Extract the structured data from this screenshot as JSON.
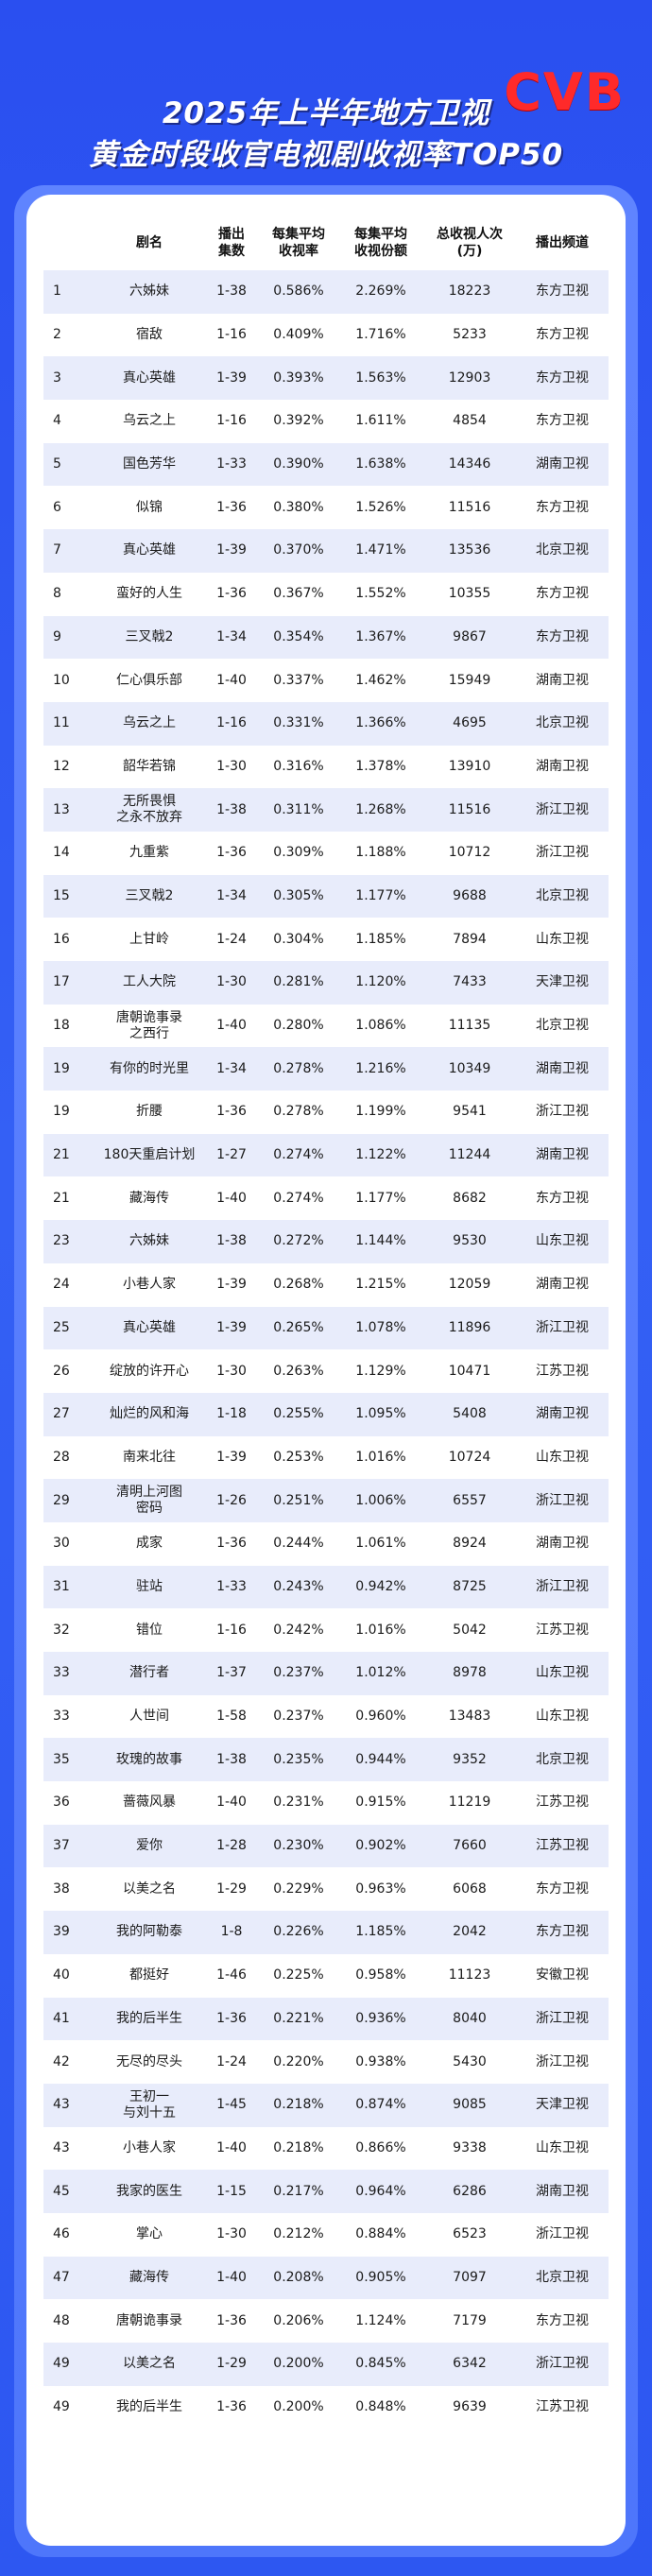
{
  "logo": "CVB",
  "title_line1": "2025年上半年地方卫视",
  "title_line2": "黄金时段收官电视剧收视率TOP50",
  "headers": {
    "rank": "",
    "name": "剧名",
    "episodes": "播出\n集数",
    "rating": "每集平均\n收视率",
    "share": "每集平均\n收视份额",
    "viewers": "总收视人次\n(万)",
    "channel": "播出频道"
  },
  "rows": [
    {
      "rank": "1",
      "name": "六姊妹",
      "episodes": "1-38",
      "rating": "0.586%",
      "share": "2.269%",
      "viewers": "18223",
      "channel": "东方卫视"
    },
    {
      "rank": "2",
      "name": "宿敌",
      "episodes": "1-16",
      "rating": "0.409%",
      "share": "1.716%",
      "viewers": "5233",
      "channel": "东方卫视"
    },
    {
      "rank": "3",
      "name": "真心英雄",
      "episodes": "1-39",
      "rating": "0.393%",
      "share": "1.563%",
      "viewers": "12903",
      "channel": "东方卫视"
    },
    {
      "rank": "4",
      "name": "乌云之上",
      "episodes": "1-16",
      "rating": "0.392%",
      "share": "1.611%",
      "viewers": "4854",
      "channel": "东方卫视"
    },
    {
      "rank": "5",
      "name": "国色芳华",
      "episodes": "1-33",
      "rating": "0.390%",
      "share": "1.638%",
      "viewers": "14346",
      "channel": "湖南卫视"
    },
    {
      "rank": "6",
      "name": "似锦",
      "episodes": "1-36",
      "rating": "0.380%",
      "share": "1.526%",
      "viewers": "11516",
      "channel": "东方卫视"
    },
    {
      "rank": "7",
      "name": "真心英雄",
      "episodes": "1-39",
      "rating": "0.370%",
      "share": "1.471%",
      "viewers": "13536",
      "channel": "北京卫视"
    },
    {
      "rank": "8",
      "name": "蛮好的人生",
      "episodes": "1-36",
      "rating": "0.367%",
      "share": "1.552%",
      "viewers": "10355",
      "channel": "东方卫视"
    },
    {
      "rank": "9",
      "name": "三叉戟2",
      "episodes": "1-34",
      "rating": "0.354%",
      "share": "1.367%",
      "viewers": "9867",
      "channel": "东方卫视"
    },
    {
      "rank": "10",
      "name": "仁心俱乐部",
      "episodes": "1-40",
      "rating": "0.337%",
      "share": "1.462%",
      "viewers": "15949",
      "channel": "湖南卫视"
    },
    {
      "rank": "11",
      "name": "乌云之上",
      "episodes": "1-16",
      "rating": "0.331%",
      "share": "1.366%",
      "viewers": "4695",
      "channel": "北京卫视"
    },
    {
      "rank": "12",
      "name": "韶华若锦",
      "episodes": "1-30",
      "rating": "0.316%",
      "share": "1.378%",
      "viewers": "13910",
      "channel": "湖南卫视"
    },
    {
      "rank": "13",
      "name": "无所畏惧\n之永不放弃",
      "episodes": "1-38",
      "rating": "0.311%",
      "share": "1.268%",
      "viewers": "11516",
      "channel": "浙江卫视"
    },
    {
      "rank": "14",
      "name": "九重紫",
      "episodes": "1-36",
      "rating": "0.309%",
      "share": "1.188%",
      "viewers": "10712",
      "channel": "浙江卫视"
    },
    {
      "rank": "15",
      "name": "三叉戟2",
      "episodes": "1-34",
      "rating": "0.305%",
      "share": "1.177%",
      "viewers": "9688",
      "channel": "北京卫视"
    },
    {
      "rank": "16",
      "name": "上甘岭",
      "episodes": "1-24",
      "rating": "0.304%",
      "share": "1.185%",
      "viewers": "7894",
      "channel": "山东卫视"
    },
    {
      "rank": "17",
      "name": "工人大院",
      "episodes": "1-30",
      "rating": "0.281%",
      "share": "1.120%",
      "viewers": "7433",
      "channel": "天津卫视"
    },
    {
      "rank": "18",
      "name": "唐朝诡事录\n之西行",
      "episodes": "1-40",
      "rating": "0.280%",
      "share": "1.086%",
      "viewers": "11135",
      "channel": "北京卫视"
    },
    {
      "rank": "19",
      "name": "有你的时光里",
      "episodes": "1-34",
      "rating": "0.278%",
      "share": "1.216%",
      "viewers": "10349",
      "channel": "湖南卫视"
    },
    {
      "rank": "19",
      "name": "折腰",
      "episodes": "1-36",
      "rating": "0.278%",
      "share": "1.199%",
      "viewers": "9541",
      "channel": "浙江卫视"
    },
    {
      "rank": "21",
      "name": "180天重启计划",
      "episodes": "1-27",
      "rating": "0.274%",
      "share": "1.122%",
      "viewers": "11244",
      "channel": "湖南卫视"
    },
    {
      "rank": "21",
      "name": "藏海传",
      "episodes": "1-40",
      "rating": "0.274%",
      "share": "1.177%",
      "viewers": "8682",
      "channel": "东方卫视"
    },
    {
      "rank": "23",
      "name": "六姊妹",
      "episodes": "1-38",
      "rating": "0.272%",
      "share": "1.144%",
      "viewers": "9530",
      "channel": "山东卫视"
    },
    {
      "rank": "24",
      "name": "小巷人家",
      "episodes": "1-39",
      "rating": "0.268%",
      "share": "1.215%",
      "viewers": "12059",
      "channel": "湖南卫视"
    },
    {
      "rank": "25",
      "name": "真心英雄",
      "episodes": "1-39",
      "rating": "0.265%",
      "share": "1.078%",
      "viewers": "11896",
      "channel": "浙江卫视"
    },
    {
      "rank": "26",
      "name": "绽放的许开心",
      "episodes": "1-30",
      "rating": "0.263%",
      "share": "1.129%",
      "viewers": "10471",
      "channel": "江苏卫视"
    },
    {
      "rank": "27",
      "name": "灿烂的风和海",
      "episodes": "1-18",
      "rating": "0.255%",
      "share": "1.095%",
      "viewers": "5408",
      "channel": "湖南卫视"
    },
    {
      "rank": "28",
      "name": "南来北往",
      "episodes": "1-39",
      "rating": "0.253%",
      "share": "1.016%",
      "viewers": "10724",
      "channel": "山东卫视"
    },
    {
      "rank": "29",
      "name": "清明上河图\n密码",
      "episodes": "1-26",
      "rating": "0.251%",
      "share": "1.006%",
      "viewers": "6557",
      "channel": "浙江卫视"
    },
    {
      "rank": "30",
      "name": "成家",
      "episodes": "1-36",
      "rating": "0.244%",
      "share": "1.061%",
      "viewers": "8924",
      "channel": "湖南卫视"
    },
    {
      "rank": "31",
      "name": "驻站",
      "episodes": "1-33",
      "rating": "0.243%",
      "share": "0.942%",
      "viewers": "8725",
      "channel": "浙江卫视"
    },
    {
      "rank": "32",
      "name": "错位",
      "episodes": "1-16",
      "rating": "0.242%",
      "share": "1.016%",
      "viewers": "5042",
      "channel": "江苏卫视"
    },
    {
      "rank": "33",
      "name": "潜行者",
      "episodes": "1-37",
      "rating": "0.237%",
      "share": "1.012%",
      "viewers": "8978",
      "channel": "山东卫视"
    },
    {
      "rank": "33",
      "name": "人世间",
      "episodes": "1-58",
      "rating": "0.237%",
      "share": "0.960%",
      "viewers": "13483",
      "channel": "山东卫视"
    },
    {
      "rank": "35",
      "name": "玫瑰的故事",
      "episodes": "1-38",
      "rating": "0.235%",
      "share": "0.944%",
      "viewers": "9352",
      "channel": "北京卫视"
    },
    {
      "rank": "36",
      "name": "蔷薇风暴",
      "episodes": "1-40",
      "rating": "0.231%",
      "share": "0.915%",
      "viewers": "11219",
      "channel": "江苏卫视"
    },
    {
      "rank": "37",
      "name": "爱你",
      "episodes": "1-28",
      "rating": "0.230%",
      "share": "0.902%",
      "viewers": "7660",
      "channel": "江苏卫视"
    },
    {
      "rank": "38",
      "name": "以美之名",
      "episodes": "1-29",
      "rating": "0.229%",
      "share": "0.963%",
      "viewers": "6068",
      "channel": "东方卫视"
    },
    {
      "rank": "39",
      "name": "我的阿勒泰",
      "episodes": "1-8",
      "rating": "0.226%",
      "share": "1.185%",
      "viewers": "2042",
      "channel": "东方卫视"
    },
    {
      "rank": "40",
      "name": "都挺好",
      "episodes": "1-46",
      "rating": "0.225%",
      "share": "0.958%",
      "viewers": "11123",
      "channel": "安徽卫视"
    },
    {
      "rank": "41",
      "name": "我的后半生",
      "episodes": "1-36",
      "rating": "0.221%",
      "share": "0.936%",
      "viewers": "8040",
      "channel": "浙江卫视"
    },
    {
      "rank": "42",
      "name": "无尽的尽头",
      "episodes": "1-24",
      "rating": "0.220%",
      "share": "0.938%",
      "viewers": "5430",
      "channel": "浙江卫视"
    },
    {
      "rank": "43",
      "name": "王初一\n与刘十五",
      "episodes": "1-45",
      "rating": "0.218%",
      "share": "0.874%",
      "viewers": "9085",
      "channel": "天津卫视"
    },
    {
      "rank": "43",
      "name": "小巷人家",
      "episodes": "1-40",
      "rating": "0.218%",
      "share": "0.866%",
      "viewers": "9338",
      "channel": "山东卫视"
    },
    {
      "rank": "45",
      "name": "我家的医生",
      "episodes": "1-15",
      "rating": "0.217%",
      "share": "0.964%",
      "viewers": "6286",
      "channel": "湖南卫视"
    },
    {
      "rank": "46",
      "name": "掌心",
      "episodes": "1-30",
      "rating": "0.212%",
      "share": "0.884%",
      "viewers": "6523",
      "channel": "浙江卫视"
    },
    {
      "rank": "47",
      "name": "藏海传",
      "episodes": "1-40",
      "rating": "0.208%",
      "share": "0.905%",
      "viewers": "7097",
      "channel": "北京卫视"
    },
    {
      "rank": "48",
      "name": "唐朝诡事录",
      "episodes": "1-36",
      "rating": "0.206%",
      "share": "1.124%",
      "viewers": "7179",
      "channel": "东方卫视"
    },
    {
      "rank": "49",
      "name": "以美之名",
      "episodes": "1-29",
      "rating": "0.200%",
      "share": "0.845%",
      "viewers": "6342",
      "channel": "浙江卫视"
    },
    {
      "rank": "49",
      "name": "我的后半生",
      "episodes": "1-36",
      "rating": "0.200%",
      "share": "0.848%",
      "viewers": "9639",
      "channel": "江苏卫视"
    }
  ]
}
